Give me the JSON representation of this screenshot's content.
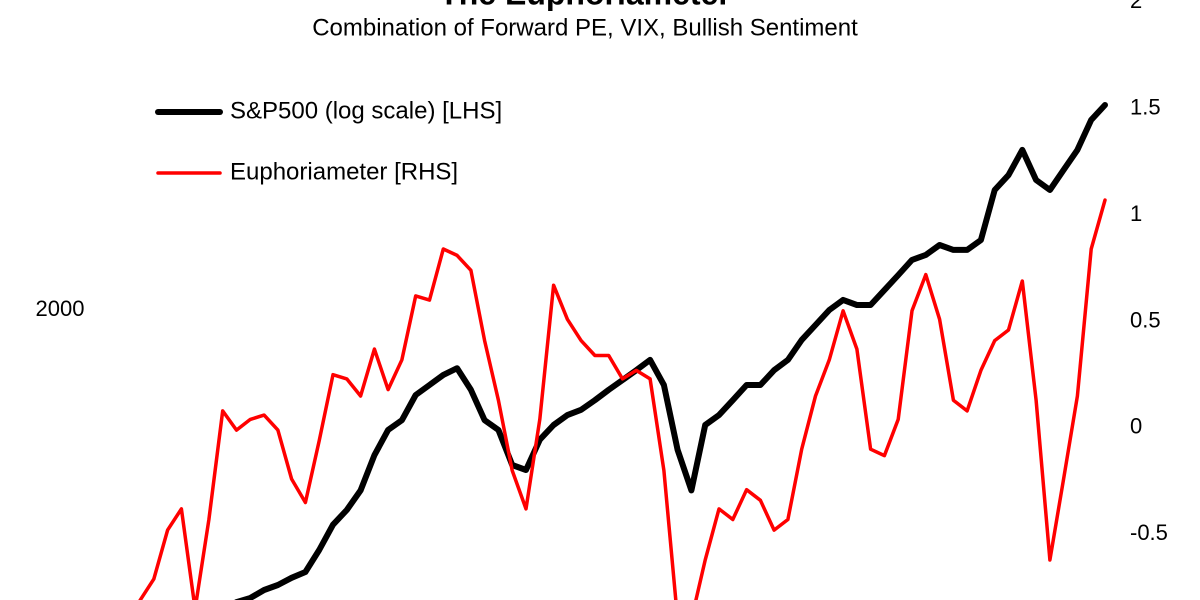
{
  "chart_data": {
    "type": "line",
    "title": "The Euphoriameter",
    "subtitle": "Combination of Forward PE, VIX, Bullish Sentiment",
    "x": [
      1989,
      1989.5,
      1990,
      1990.5,
      1991,
      1991.5,
      1992,
      1992.5,
      1993,
      1993.5,
      1994,
      1994.5,
      1995,
      1995.5,
      1996,
      1996.5,
      1997,
      1997.5,
      1998,
      1998.5,
      1999,
      1999.5,
      2000,
      2000.5,
      2001,
      2001.5,
      2002,
      2002.5,
      2003,
      2003.5,
      2004,
      2004.5,
      2005,
      2005.5,
      2006,
      2006.5,
      2007,
      2007.5,
      2008,
      2008.5,
      2009,
      2009.5,
      2010,
      2010.5,
      2011,
      2011.5,
      2012,
      2012.5,
      2013,
      2013.5,
      2014,
      2014.5,
      2015,
      2015.5,
      2016,
      2016.5,
      2017,
      2017.5,
      2018,
      2018.5,
      2019,
      2019.5,
      2020,
      2020.5,
      2021,
      2021.5,
      2022,
      2022.5,
      2023,
      2023.5,
      2024
    ],
    "xlim": [
      1989,
      2024
    ],
    "series": [
      {
        "name": "S&P500 (log scale) [LHS]",
        "color": "#000000",
        "axis": "y",
        "values": [
          null,
          null,
          null,
          null,
          null,
          null,
          null,
          542,
          552,
          572,
          585,
          604,
          620,
          684,
          766,
          818,
          893,
          1045,
          1170,
          1222,
          1368,
          1430,
          1496,
          1542,
          1400,
          1222,
          1170,
          1000,
          978,
          1120,
          1196,
          1250,
          1280,
          1336,
          1400,
          1462,
          1528,
          1600,
          1430,
          1070,
          893,
          1196,
          1250,
          1336,
          1430,
          1430,
          1528,
          1600,
          1750,
          1870,
          2000,
          2092,
          2045,
          2045,
          2186,
          2338,
          2502,
          2558,
          2674,
          2616,
          2616,
          2734,
          3420,
          3656,
          4092,
          3576,
          3420,
          3742,
          4092,
          4678,
          5000
        ]
      },
      {
        "name": "Euphoriameter [RHS]",
        "color": "#ff0000",
        "axis": "y2",
        "values": [
          -0.81,
          -0.71,
          -0.48,
          -0.38,
          -0.85,
          -0.43,
          0.08,
          -0.01,
          0.04,
          0.06,
          -0.01,
          -0.24,
          -0.35,
          -0.06,
          0.25,
          0.23,
          0.15,
          0.37,
          0.18,
          0.32,
          0.62,
          0.6,
          0.84,
          0.81,
          0.74,
          0.41,
          0.13,
          -0.2,
          -0.38,
          0.04,
          0.67,
          0.51,
          0.41,
          0.34,
          0.34,
          0.23,
          0.27,
          0.23,
          -0.2,
          -0.9,
          -0.9,
          -0.62,
          -0.38,
          -0.43,
          -0.29,
          -0.34,
          -0.48,
          -0.43,
          -0.1,
          0.15,
          0.32,
          0.55,
          0.37,
          -0.1,
          -0.13,
          0.04,
          0.55,
          0.72,
          0.51,
          0.13,
          0.08,
          0.27,
          0.41,
          0.46,
          0.69,
          0.13,
          -0.62,
          -0.24,
          0.15,
          0.84,
          1.07
        ]
      }
    ],
    "ylim": [
      547,
      7925
    ],
    "yticks": [
      2000
    ],
    "ylog": true,
    "y2lim": [
      -0.808,
      2
    ],
    "y2ticks": [
      -0.5,
      0,
      0.5,
      1,
      1.5,
      2
    ],
    "grid": false,
    "legend": "upper left"
  }
}
